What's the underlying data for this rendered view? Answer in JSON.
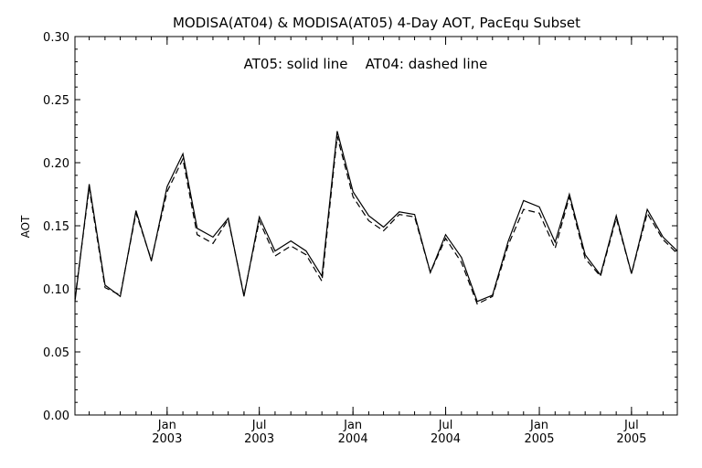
{
  "chart_data": {
    "type": "line",
    "title": "MODISA(AT04) & MODISA(AT05) 4-Day AOT, PacEqu Subset",
    "annotation": "AT05: solid line    AT04: dashed line",
    "xlabel": "",
    "ylabel": "AOT",
    "xlim": [
      "2002-07-04",
      "2005-09-29"
    ],
    "ylim": [
      0,
      0.3
    ],
    "grid": false,
    "y_ticks": [
      "0.00",
      "0.05",
      "0.10",
      "0.15",
      "0.20",
      "0.25",
      "0.30"
    ],
    "x_ticks": [
      {
        "date": "2003-01-01",
        "label": [
          "Jan",
          "2003"
        ]
      },
      {
        "date": "2003-07-01",
        "label": [
          "Jul",
          "2003"
        ]
      },
      {
        "date": "2004-01-01",
        "label": [
          "Jan",
          "2004"
        ]
      },
      {
        "date": "2004-07-01",
        "label": [
          "Jul",
          "2004"
        ]
      },
      {
        "date": "2005-01-01",
        "label": [
          "Jan",
          "2005"
        ]
      },
      {
        "date": "2005-07-01",
        "label": [
          "Jul",
          "2005"
        ]
      }
    ],
    "series": [
      {
        "name": "AT05",
        "style": "solid",
        "color": "#000000",
        "x": [
          "2002-07-04",
          "2002-08-01",
          "2002-09-01",
          "2002-10-01",
          "2002-11-01",
          "2002-12-01",
          "2003-01-01",
          "2003-02-01",
          "2003-03-01",
          "2003-04-01",
          "2003-05-01",
          "2003-06-01",
          "2003-07-01",
          "2003-08-01",
          "2003-09-01",
          "2003-10-01",
          "2003-11-01",
          "2003-12-01",
          "2004-01-01",
          "2004-02-01",
          "2004-03-01",
          "2004-04-01",
          "2004-05-01",
          "2004-06-01",
          "2004-07-01",
          "2004-08-01",
          "2004-09-01",
          "2004-10-01",
          "2004-11-01",
          "2004-12-01",
          "2005-01-01",
          "2005-02-01",
          "2005-03-01",
          "2005-04-01",
          "2005-05-01",
          "2005-06-01",
          "2005-07-01",
          "2005-08-01",
          "2005-09-01",
          "2005-09-29"
        ],
        "values": [
          0.09,
          0.183,
          0.103,
          0.094,
          0.162,
          0.122,
          0.181,
          0.207,
          0.148,
          0.141,
          0.156,
          0.094,
          0.157,
          0.13,
          0.138,
          0.13,
          0.11,
          0.225,
          0.177,
          0.158,
          0.149,
          0.161,
          0.159,
          0.113,
          0.143,
          0.125,
          0.09,
          0.095,
          0.138,
          0.17,
          0.165,
          0.137,
          0.175,
          0.127,
          0.111,
          0.158,
          0.112,
          0.163,
          0.141,
          0.13
        ]
      },
      {
        "name": "AT04",
        "style": "dashed",
        "color": "#000000",
        "x": [
          "2002-07-04",
          "2002-08-01",
          "2002-09-01",
          "2002-10-01",
          "2002-11-01",
          "2002-12-01",
          "2003-01-01",
          "2003-02-01",
          "2003-03-01",
          "2003-04-01",
          "2003-05-01",
          "2003-06-01",
          "2003-07-01",
          "2003-08-01",
          "2003-09-01",
          "2003-10-01",
          "2003-11-01",
          "2003-12-01",
          "2004-01-01",
          "2004-02-01",
          "2004-03-01",
          "2004-04-01",
          "2004-05-01",
          "2004-06-01",
          "2004-07-01",
          "2004-08-01",
          "2004-09-01",
          "2004-10-01",
          "2004-11-01",
          "2004-12-01",
          "2005-01-01",
          "2005-02-01",
          "2005-03-01",
          "2005-04-01",
          "2005-05-01",
          "2005-06-01",
          "2005-07-01",
          "2005-08-01",
          "2005-09-01",
          "2005-09-29"
        ],
        "values": [
          0.092,
          0.18,
          0.101,
          0.095,
          0.16,
          0.123,
          0.177,
          0.203,
          0.143,
          0.136,
          0.155,
          0.095,
          0.154,
          0.126,
          0.134,
          0.127,
          0.106,
          0.221,
          0.173,
          0.154,
          0.146,
          0.159,
          0.157,
          0.113,
          0.14,
          0.121,
          0.088,
          0.094,
          0.135,
          0.163,
          0.16,
          0.132,
          0.173,
          0.124,
          0.11,
          0.156,
          0.112,
          0.16,
          0.139,
          0.128
        ]
      }
    ]
  }
}
